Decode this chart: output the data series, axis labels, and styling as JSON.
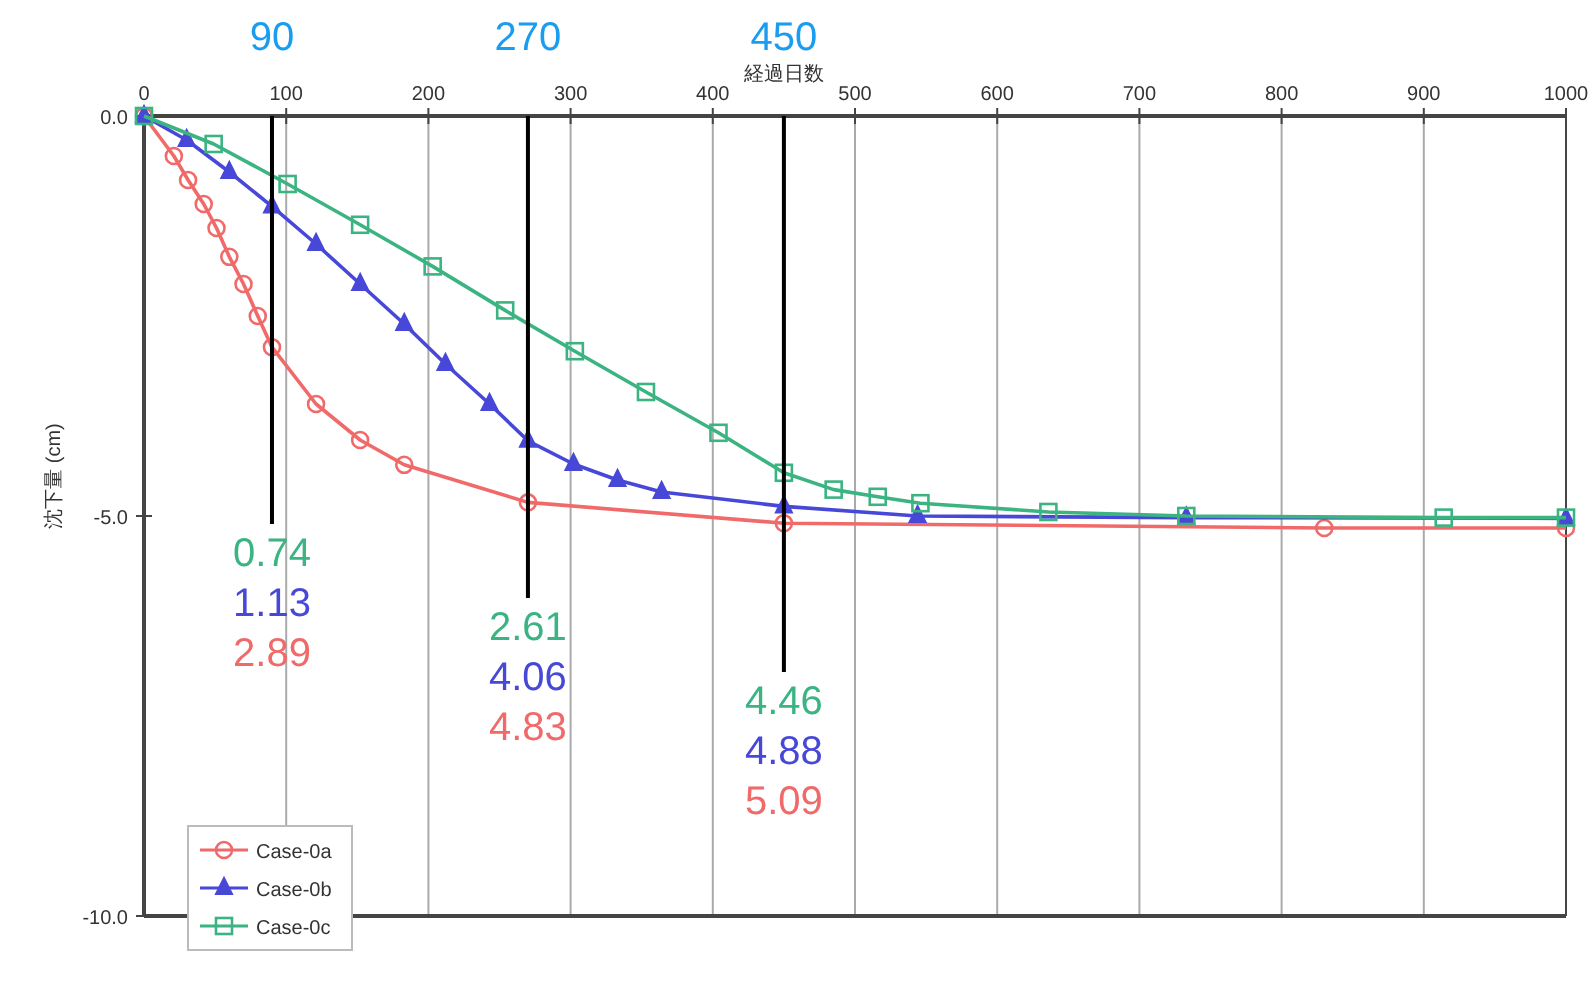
{
  "chart_data": {
    "type": "line",
    "xlabel": "経過日数",
    "ylabel": "沈下量 (cm)",
    "xlim": [
      0,
      1000
    ],
    "xticks": [
      0,
      100,
      200,
      300,
      400,
      500,
      600,
      700,
      800,
      900,
      1000
    ],
    "ylim": [
      -10,
      0
    ],
    "yticks": [
      {
        "value": 0,
        "label": "0.0"
      },
      {
        "value": -5,
        "label": "-5.0"
      },
      {
        "value": -10,
        "label": "-10.0"
      }
    ],
    "grid": "x",
    "legend": "bottom left",
    "line_style": "solid",
    "series": [
      {
        "name": "Case-0a",
        "color": "#f06a6a",
        "marker": "circle",
        "x": [
          0,
          21,
          31,
          42,
          51,
          60,
          70,
          80,
          90,
          121,
          152,
          183,
          270,
          450,
          830,
          1000
        ],
        "values": [
          0,
          -0.5,
          -0.8,
          -1.1,
          -1.4,
          -1.76,
          -2.1,
          -2.5,
          -2.89,
          -3.6,
          -4.05,
          -4.36,
          -4.83,
          -5.09,
          -5.15,
          -5.15
        ]
      },
      {
        "name": "Case-0b",
        "color": "#4848d8",
        "marker": "triangle",
        "x": [
          0,
          30,
          60,
          90,
          121,
          152,
          183,
          212,
          243,
          270,
          302,
          333,
          364,
          450,
          544,
          733,
          1000
        ],
        "values": [
          0,
          -0.3,
          -0.7,
          -1.13,
          -1.6,
          -2.1,
          -2.6,
          -3.1,
          -3.6,
          -4.06,
          -4.35,
          -4.55,
          -4.7,
          -4.88,
          -5.0,
          -5.02,
          -5.03
        ]
      },
      {
        "name": "Case-0c",
        "color": "#3cb482",
        "marker": "square",
        "x": [
          0,
          49,
          101,
          152,
          203,
          254,
          303,
          353,
          404,
          450,
          485,
          516,
          546,
          636,
          733,
          914,
          1000
        ],
        "values": [
          0,
          -0.35,
          -0.85,
          -1.36,
          -1.88,
          -2.43,
          -2.94,
          -3.45,
          -3.96,
          -4.46,
          -4.67,
          -4.76,
          -4.84,
          -4.95,
          -5.0,
          -5.02,
          -5.02
        ]
      }
    ],
    "ref_lines": [
      {
        "axis": "x",
        "value": 90,
        "label": "90",
        "color": "#000000"
      },
      {
        "axis": "x",
        "value": 270,
        "label": "270",
        "color": "#000000"
      },
      {
        "axis": "x",
        "value": 450,
        "label": "450",
        "color": "#000000"
      }
    ],
    "annotations": [
      "0.74",
      "1.13",
      "2.89",
      "2.61",
      "4.06",
      "4.83",
      "4.46",
      "4.88",
      "5.09"
    ]
  }
}
